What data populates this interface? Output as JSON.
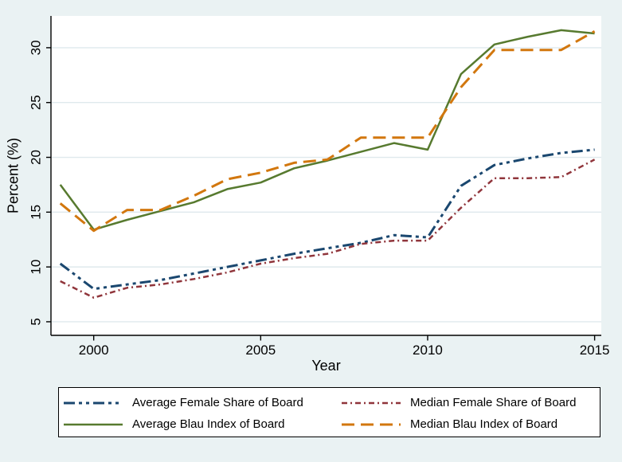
{
  "figure": {
    "background_color": "#eaf2f3",
    "plot_background_color": "#ffffff",
    "grid_color": "#dfe9ed",
    "axis_color": "#000000",
    "text_color": "#000000"
  },
  "chart_data": {
    "type": "line",
    "xlabel": "Year",
    "ylabel": "Percent (%)",
    "x": [
      1999,
      2000,
      2001,
      2002,
      2003,
      2004,
      2005,
      2006,
      2007,
      2008,
      2009,
      2010,
      2011,
      2012,
      2013,
      2014,
      2015
    ],
    "xticks": [
      2000,
      2005,
      2010,
      2015
    ],
    "yticks": [
      5,
      10,
      15,
      20,
      25,
      30
    ],
    "xlim": [
      1998.72,
      2015.2
    ],
    "ylim": [
      3.76,
      32.9
    ],
    "grid": "horizontal",
    "legend_position": "bottom",
    "series": [
      {
        "name": "Average Female Share of Board",
        "color": "#1a476f",
        "dash": "14 5 4 5 4 5",
        "width": 3,
        "values": [
          10.3,
          8.0,
          8.4,
          8.8,
          9.4,
          10.0,
          10.6,
          11.2,
          11.7,
          12.2,
          12.9,
          12.7,
          17.4,
          19.3,
          19.9,
          20.4,
          20.7
        ]
      },
      {
        "name": "Median Female Share of Board",
        "color": "#90353b",
        "dash": "7 4 2 4",
        "width": 2.5,
        "values": [
          8.7,
          7.2,
          8.1,
          8.4,
          8.9,
          9.5,
          10.3,
          10.8,
          11.2,
          12.1,
          12.4,
          12.4,
          15.4,
          18.1,
          18.1,
          18.2,
          19.8
        ]
      },
      {
        "name": "Average Blau Index of Board",
        "color": "#577a2f",
        "dash": "",
        "width": 2.5,
        "values": [
          17.5,
          13.4,
          14.3,
          15.1,
          15.9,
          17.1,
          17.7,
          19.0,
          19.7,
          20.5,
          21.3,
          20.7,
          27.6,
          30.3,
          31.0,
          31.6,
          31.3
        ]
      },
      {
        "name": "Median Blau Index of Board",
        "color": "#d2770e",
        "dash": "16 8",
        "width": 3,
        "values": [
          15.8,
          13.3,
          15.2,
          15.2,
          16.5,
          18.0,
          18.6,
          19.5,
          19.8,
          21.8,
          21.8,
          21.8,
          26.4,
          29.8,
          29.8,
          29.8,
          31.5
        ]
      }
    ]
  }
}
